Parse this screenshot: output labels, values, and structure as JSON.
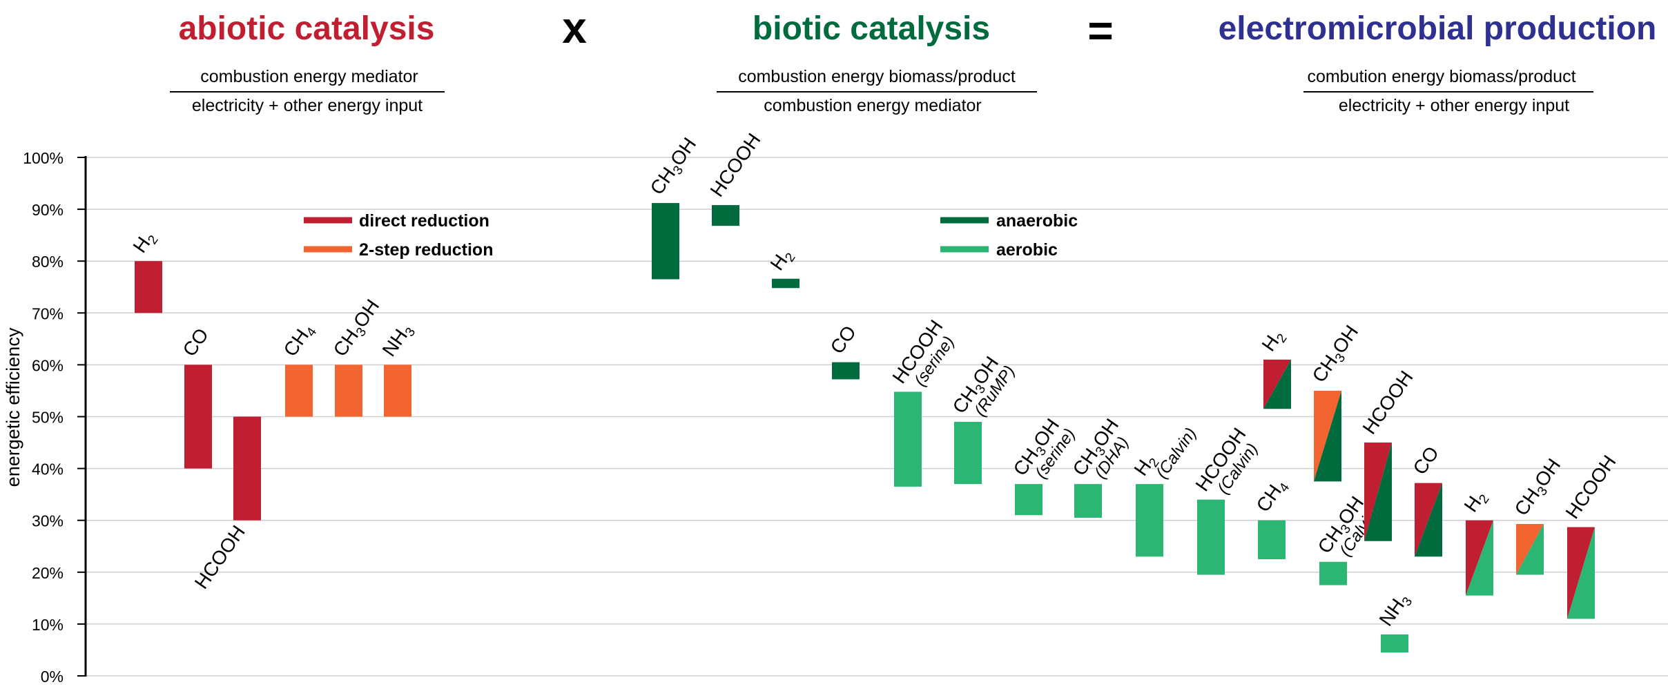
{
  "headers": {
    "abiotic": {
      "title": "abiotic catalysis",
      "numerator": "combustion energy mediator",
      "denominator": "electricity + other energy input"
    },
    "times": "x",
    "biotic": {
      "title": "biotic catalysis",
      "numerator": "combustion energy biomass/product",
      "denominator": "combustion energy mediator"
    },
    "equals": "=",
    "electro": {
      "title": "electromicrobial production",
      "numerator": "combution energy biomass/product",
      "denominator": "electricity + other energy input"
    }
  },
  "legends": {
    "abiotic": [
      {
        "label": "direct reduction",
        "color": "#c01f31"
      },
      {
        "label": "2-step reduction",
        "color": "#f26430"
      }
    ],
    "biotic": [
      {
        "label": "anaerobic",
        "color": "#006b3c"
      },
      {
        "label": "aerobic",
        "color": "#2bb673"
      }
    ]
  },
  "chart_data": {
    "type": "bar",
    "ylabel": "energetic efficiency",
    "ylim": [
      0,
      100
    ],
    "yticks": [
      "0%",
      "10%",
      "20%",
      "30%",
      "40%",
      "50%",
      "60%",
      "70%",
      "80%",
      "90%",
      "100%"
    ],
    "colors": {
      "direct": "#c01f31",
      "two_step": "#f26430",
      "anaerobic": "#006b3c",
      "aerobic": "#2bb673"
    },
    "series": [
      {
        "name": "abiotic catalysis",
        "bars": [
          {
            "label": [
              "H",
              "2"
            ],
            "low": 70,
            "high": 80,
            "type": "direct"
          },
          {
            "label": [
              "CO"
            ],
            "low": 40,
            "high": 60,
            "type": "direct"
          },
          {
            "label": [
              "HCOOH"
            ],
            "low": 30,
            "high": 50,
            "type": "direct"
          },
          {
            "label": [
              "CH",
              "4"
            ],
            "low": 50,
            "high": 60,
            "type": "two_step"
          },
          {
            "label": [
              "CH",
              "3",
              "OH"
            ],
            "low": 50,
            "high": 60,
            "type": "two_step"
          },
          {
            "label": [
              "NH",
              "3"
            ],
            "low": 50,
            "high": 60,
            "type": "two_step"
          }
        ]
      },
      {
        "name": "biotic catalysis",
        "bars": [
          {
            "label": [
              "CH",
              "3",
              "OH"
            ],
            "low": 76.5,
            "high": 91.2,
            "type": "anaerobic"
          },
          {
            "label": [
              "HCOOH"
            ],
            "low": 86.8,
            "high": 90.8,
            "type": "anaerobic"
          },
          {
            "label": [
              "H",
              "2"
            ],
            "low": 74.8,
            "high": 76.6,
            "type": "anaerobic"
          },
          {
            "label": [
              "CO"
            ],
            "low": 57.2,
            "high": 60.5,
            "type": "anaerobic"
          },
          {
            "label": [
              "HCOOH"
            ],
            "sublabel": "(serine)",
            "low": 36.5,
            "high": 54.8,
            "type": "aerobic"
          },
          {
            "label": [
              "CH",
              "3",
              "OH"
            ],
            "sublabel": "(RuMP)",
            "low": 37.0,
            "high": 49.0,
            "type": "aerobic"
          },
          {
            "label": [
              "CH",
              "3",
              "OH"
            ],
            "sublabel": "(serine)",
            "low": 31.0,
            "high": 37.0,
            "type": "aerobic"
          },
          {
            "label": [
              "CH",
              "3",
              "OH"
            ],
            "sublabel": "(DHA)",
            "low": 30.5,
            "high": 37.0,
            "type": "aerobic"
          },
          {
            "label": [
              "H",
              "2"
            ],
            "sublabel": "(Calvin)",
            "low": 23.0,
            "high": 37.0,
            "type": "aerobic"
          },
          {
            "label": [
              "HCOOH"
            ],
            "sublabel": "(Calvin)",
            "low": 19.5,
            "high": 34.0,
            "type": "aerobic"
          },
          {
            "label": [
              "CH",
              "4"
            ],
            "low": 22.5,
            "high": 30.0,
            "type": "aerobic"
          },
          {
            "label": [
              "CH",
              "3",
              "OH"
            ],
            "sublabel": "(Calvin)",
            "low": 17.5,
            "high": 22.0,
            "type": "aerobic"
          },
          {
            "label": [
              "NH",
              "3"
            ],
            "low": 4.5,
            "high": 8.0,
            "type": "aerobic"
          }
        ]
      },
      {
        "name": "electromicrobial production",
        "bars": [
          {
            "label": [
              "H",
              "2"
            ],
            "low": 51.5,
            "high": 61.0,
            "abiotic": "direct",
            "biotic": "anaerobic"
          },
          {
            "label": [
              "CH",
              "3",
              "OH"
            ],
            "low": 37.5,
            "high": 55.0,
            "abiotic": "two_step",
            "biotic": "anaerobic"
          },
          {
            "label": [
              "HCOOH"
            ],
            "low": 26.0,
            "high": 45.0,
            "abiotic": "direct",
            "biotic": "anaerobic"
          },
          {
            "label": [
              "CO"
            ],
            "low": 23.0,
            "high": 37.2,
            "abiotic": "direct",
            "biotic": "anaerobic"
          },
          {
            "label": [
              "H",
              "2"
            ],
            "low": 15.5,
            "high": 30.0,
            "abiotic": "direct",
            "biotic": "aerobic"
          },
          {
            "label": [
              "CH",
              "3",
              "OH"
            ],
            "low": 19.5,
            "high": 29.3,
            "abiotic": "two_step",
            "biotic": "aerobic"
          },
          {
            "label": [
              "HCOOH"
            ],
            "low": 11.0,
            "high": 28.7,
            "abiotic": "direct",
            "biotic": "aerobic"
          }
        ]
      }
    ]
  }
}
